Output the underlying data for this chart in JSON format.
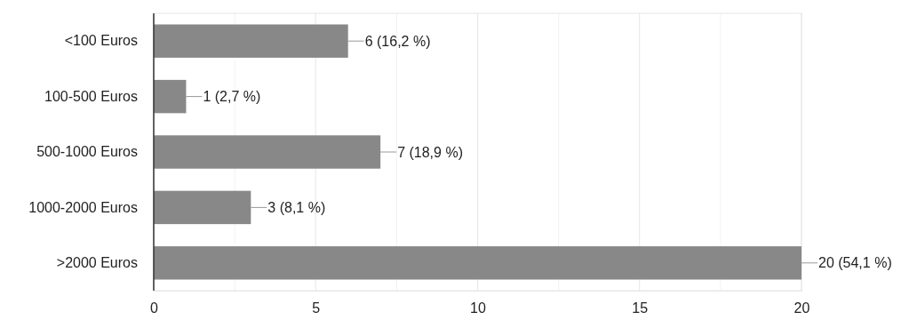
{
  "chart_data": {
    "type": "bar",
    "orientation": "horizontal",
    "categories": [
      "<100 Euros",
      "100-500 Euros",
      "500-1000 Euros",
      "1000-2000 Euros",
      ">2000 Euros"
    ],
    "values": [
      6,
      1,
      7,
      3,
      20
    ],
    "value_labels": [
      "6 (16,2 %)",
      "1 (2,7 %)",
      "7 (18,9 %)",
      "3 (8,1 %)",
      "20 (54,1 %)"
    ],
    "color": "#888888",
    "xlim": [
      0,
      20
    ],
    "xticks": [
      0,
      {
        "value": 2.5,
        "label": null
      },
      5,
      {
        "value": 7.5,
        "label": null
      },
      10,
      {
        "value": 12.5,
        "label": null
      },
      15,
      {
        "value": 17.5,
        "label": null
      },
      20
    ],
    "grid": "x"
  }
}
